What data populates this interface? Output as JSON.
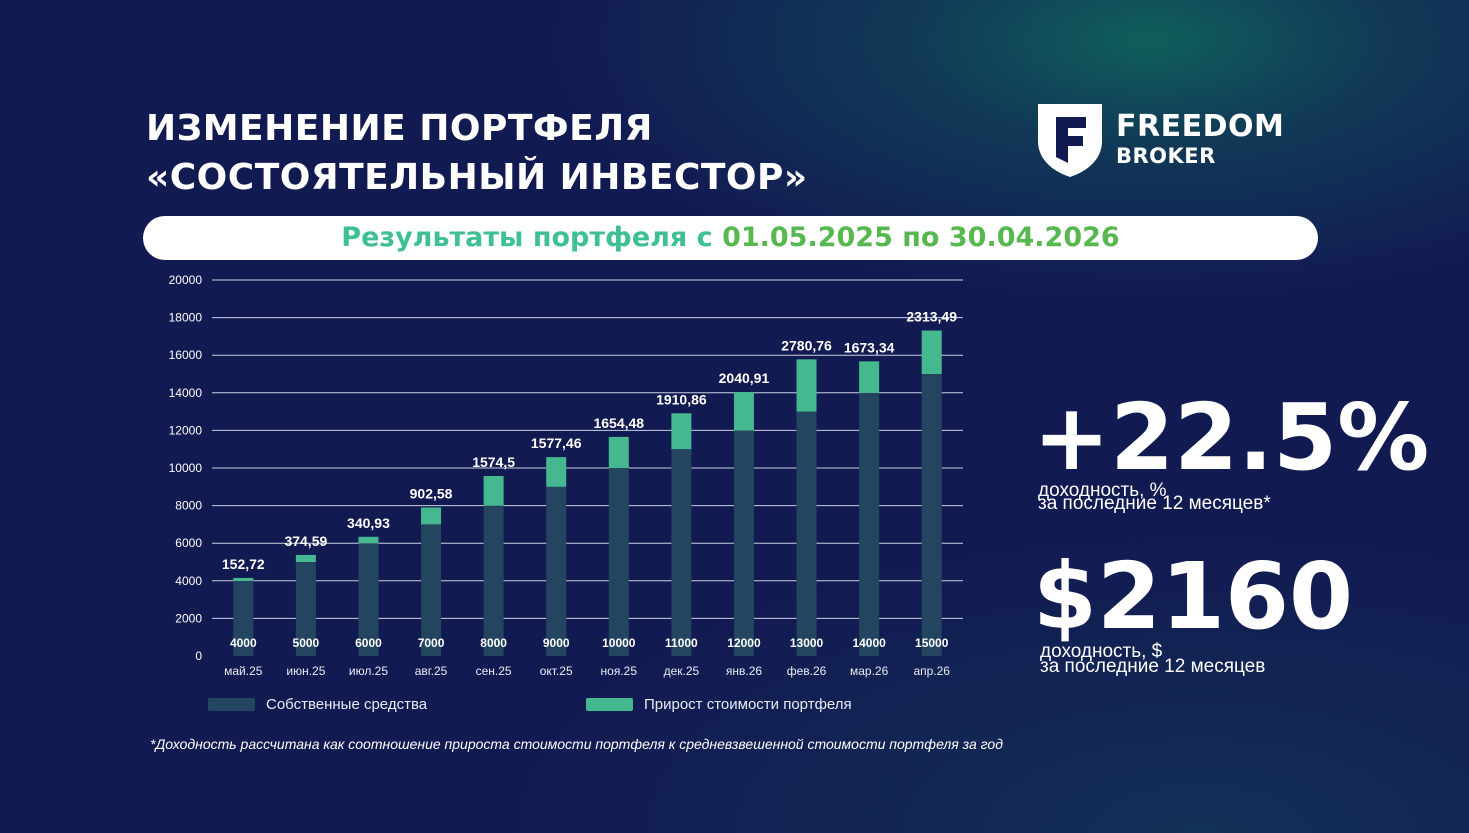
{
  "title": {
    "line1": "ИЗМЕНЕНИЕ ПОРТФЕЛЯ",
    "line2": "«СОСТОЯТЕЛЬНЫЙ ИНВЕСТОР»"
  },
  "logo": {
    "brand_line1": "FREEDOM",
    "brand_line2": "BROKER",
    "icon": "freedom-shield-f-icon"
  },
  "period": {
    "label": "Результаты портфеля с ",
    "start": "01.05.2025",
    "middle": " по ",
    "end": "30.04.2026"
  },
  "stats": [
    {
      "value": "+22.5%",
      "label_line1": "доходность, %",
      "label_line2": "за последние 12 месяцев*"
    },
    {
      "value": "$2160",
      "label_line1": "доходность, $",
      "label_line2": "за последние 12 месяцев"
    }
  ],
  "footnote": "*Доходность рассчитана как соотношение прироста стоимости портфеля к средневзвешенной стоимости портфеля за год",
  "colors": {
    "background": "#121a52",
    "own_funds": "#234560",
    "growth": "#46b890",
    "period_label": "#3fbf94",
    "period_dates": "#58b850"
  },
  "chart_data": {
    "type": "bar",
    "stacked": true,
    "categories": [
      "май.25",
      "июн.25",
      "июл.25",
      "авг.25",
      "сен.25",
      "окт.25",
      "ноя.25",
      "дек.25",
      "янв.26",
      "фев.26",
      "мар.26",
      "апр.26"
    ],
    "series": [
      {
        "name": "Собственные средства",
        "values": [
          4000,
          5000,
          6000,
          7000,
          8000,
          9000,
          10000,
          11000,
          12000,
          13000,
          14000,
          15000
        ],
        "labels": [
          "4000",
          "5000",
          "6000",
          "7000",
          "8000",
          "9000",
          "10000",
          "11000",
          "12000",
          "13000",
          "14000",
          "15000"
        ]
      },
      {
        "name": "Прирост стоимости портфеля",
        "values": [
          152.72,
          374.59,
          340.93,
          902.58,
          1574.5,
          1577.46,
          1654.48,
          1910.86,
          2040.91,
          2780.76,
          1673.34,
          2313.49
        ],
        "labels": [
          "152,72",
          "374,59",
          "340,93",
          "902,58",
          "1574,5",
          "1577,46",
          "1654,48",
          "1910,86",
          "2040,91",
          "2780,76",
          "1673,34",
          "2313,49"
        ]
      }
    ],
    "yticks": [
      "0",
      "2000",
      "4000",
      "6000",
      "8000",
      "10000",
      "12000",
      "14000",
      "16000",
      "18000",
      "20000"
    ],
    "ylim": [
      0,
      20000
    ],
    "grid": true,
    "legend_position": "bottom"
  }
}
